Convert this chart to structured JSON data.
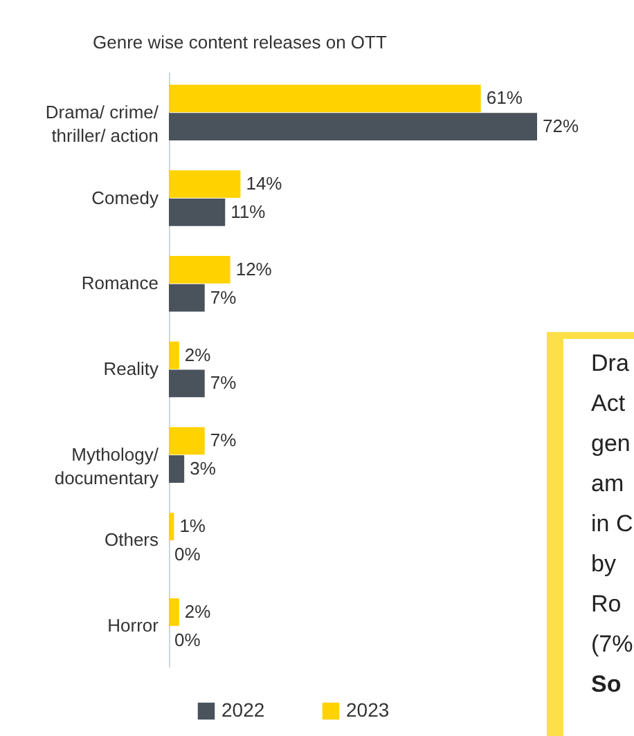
{
  "chart_data": {
    "type": "bar",
    "orientation": "horizontal",
    "title": "Genre wise content releases on OTT",
    "categories": [
      "Drama/ crime/ thriller/ action",
      "Comedy",
      "Romance",
      "Reality",
      "Mythology/ documentary",
      "Others",
      "Horror"
    ],
    "series": [
      {
        "name": "2022",
        "color": "#4a525c",
        "values": [
          72,
          11,
          7,
          7,
          3,
          0,
          0
        ],
        "value_labels": [
          "72%",
          "11%",
          "7%",
          "7%",
          "3%",
          "0%",
          "0%"
        ]
      },
      {
        "name": "2023",
        "color": "#ffd200",
        "values": [
          61,
          14,
          12,
          2,
          7,
          1,
          2
        ],
        "value_labels": [
          "61%",
          "14%",
          "12%",
          "2%",
          "7%",
          "1%",
          "2%"
        ]
      }
    ],
    "legend": "bottom",
    "annotations": [
      "Dra",
      "Act",
      "gen",
      "am",
      "in C",
      "by",
      "Ro",
      "(7%",
      "So"
    ]
  }
}
